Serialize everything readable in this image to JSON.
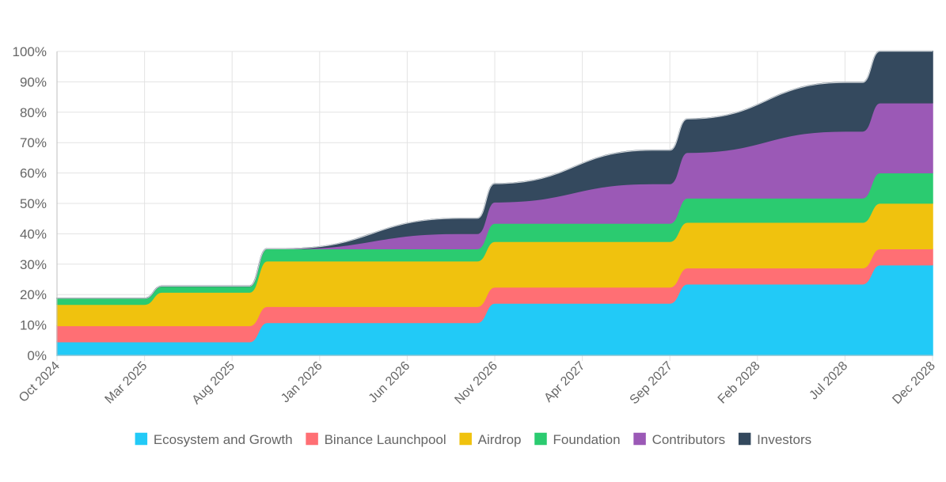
{
  "chart_data": {
    "type": "area",
    "stacked": true,
    "x_axis": {
      "ticks": [
        "Oct 2024",
        "Mar 2025",
        "Aug 2025",
        "Jan 2026",
        "Jun 2026",
        "Nov 2026",
        "Apr 2027",
        "Sep 2027",
        "Feb 2028",
        "Jul 2028",
        "Dec 2028"
      ]
    },
    "y_axis": {
      "min": 0,
      "max": 100,
      "step": 10,
      "unit": "%",
      "ticks": [
        "0%",
        "10%",
        "20%",
        "30%",
        "40%",
        "50%",
        "60%",
        "70%",
        "80%",
        "90%",
        "100%"
      ]
    },
    "grid": true,
    "legend_position": "bottom",
    "x": [
      "2024-10",
      "2025-02",
      "2025-03",
      "2025-04",
      "2025-08",
      "2025-09",
      "2025-10",
      "2025-11",
      "2026-09",
      "2026-10",
      "2026-11",
      "2027-08",
      "2027-09",
      "2027-10",
      "2028-07",
      "2028-08",
      "2028-09",
      "2028-12"
    ],
    "series": [
      {
        "name": "Ecosystem and Growth",
        "color": "#22CAF7",
        "values": [
          4.5,
          4.5,
          4.5,
          4.5,
          4.5,
          4.5,
          10.8,
          10.8,
          10.8,
          10.8,
          17.2,
          17.2,
          17.2,
          23.5,
          23.5,
          23.5,
          29.8,
          29.8
        ]
      },
      {
        "name": "Binance Launchpool",
        "color": "#FF6F74",
        "values": [
          5.3,
          5.3,
          5.3,
          5.3,
          5.3,
          5.3,
          5.3,
          5.3,
          5.3,
          5.3,
          5.3,
          5.3,
          5.3,
          5.3,
          5.3,
          5.3,
          5.3,
          5.3
        ]
      },
      {
        "name": "Airdrop",
        "color": "#F0C20E",
        "values": [
          7.0,
          7.0,
          7.0,
          11.0,
          11.0,
          11.0,
          15.0,
          15.0,
          15.0,
          15.0,
          15.0,
          15.0,
          15.0,
          15.0,
          15.0,
          15.0,
          15.0,
          15.0
        ]
      },
      {
        "name": "Foundation",
        "color": "#2BCB70",
        "values": [
          2.0,
          2.0,
          2.0,
          2.0,
          2.0,
          2.0,
          4.0,
          4.0,
          4.0,
          4.0,
          6.0,
          6.0,
          6.0,
          8.0,
          8.0,
          8.0,
          10.0,
          10.0
        ]
      },
      {
        "name": "Contributors",
        "color": "#9B59B6",
        "values": [
          0,
          0,
          0,
          0,
          0,
          0,
          0,
          0,
          5.0,
          5.0,
          7.0,
          13.0,
          13.0,
          15.0,
          22.0,
          22.0,
          23.0,
          23.0
        ]
      },
      {
        "name": "Investors",
        "color": "#34495E",
        "values": [
          0,
          0,
          0,
          0,
          0,
          0,
          0,
          0,
          5.0,
          5.0,
          6.0,
          11.0,
          11.0,
          11.0,
          16.0,
          16.0,
          17.0,
          17.0
        ]
      }
    ]
  }
}
